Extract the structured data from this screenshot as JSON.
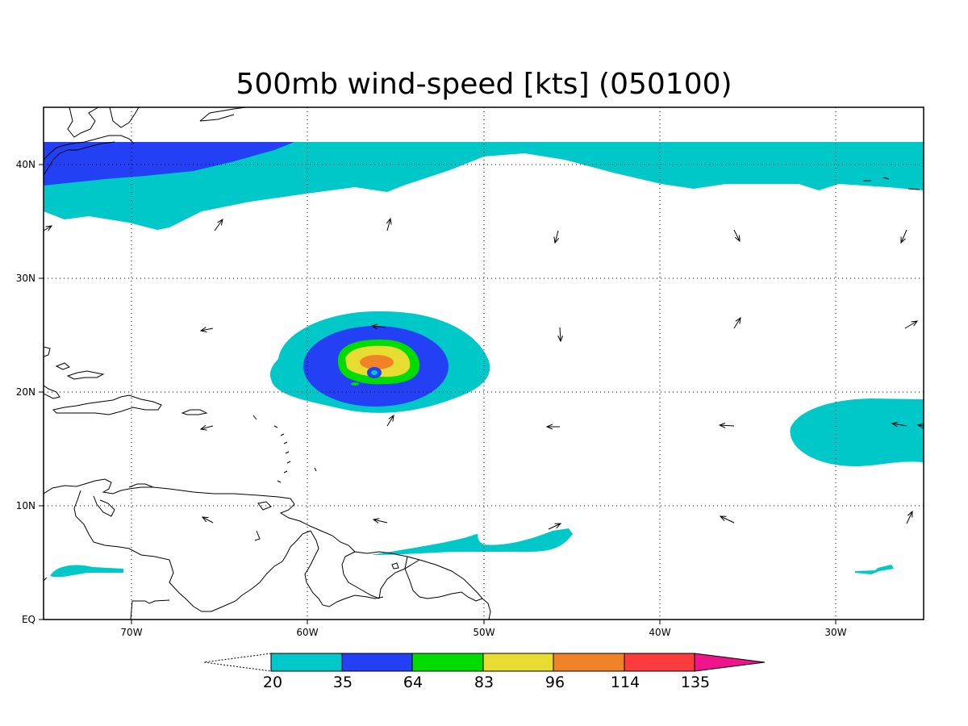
{
  "title": "500mb wind-speed [kts] (050100)",
  "axes": {
    "lon_ticks": [
      "70W",
      "60W",
      "50W",
      "40W",
      "30W"
    ],
    "lat_ticks": [
      "40N",
      "30N",
      "20N",
      "10N",
      "EQ"
    ]
  },
  "colorbar": {
    "levels": [
      "20",
      "35",
      "64",
      "83",
      "96",
      "114",
      "135"
    ],
    "colors": [
      "#00c8c8",
      "#2340f4",
      "#00dc00",
      "#e6dc32",
      "#f08228",
      "#fa3c3c",
      "#f0148c"
    ]
  },
  "features": {
    "storm_center": {
      "lon": -55.3,
      "lat": 20.8
    },
    "grid": true
  }
}
